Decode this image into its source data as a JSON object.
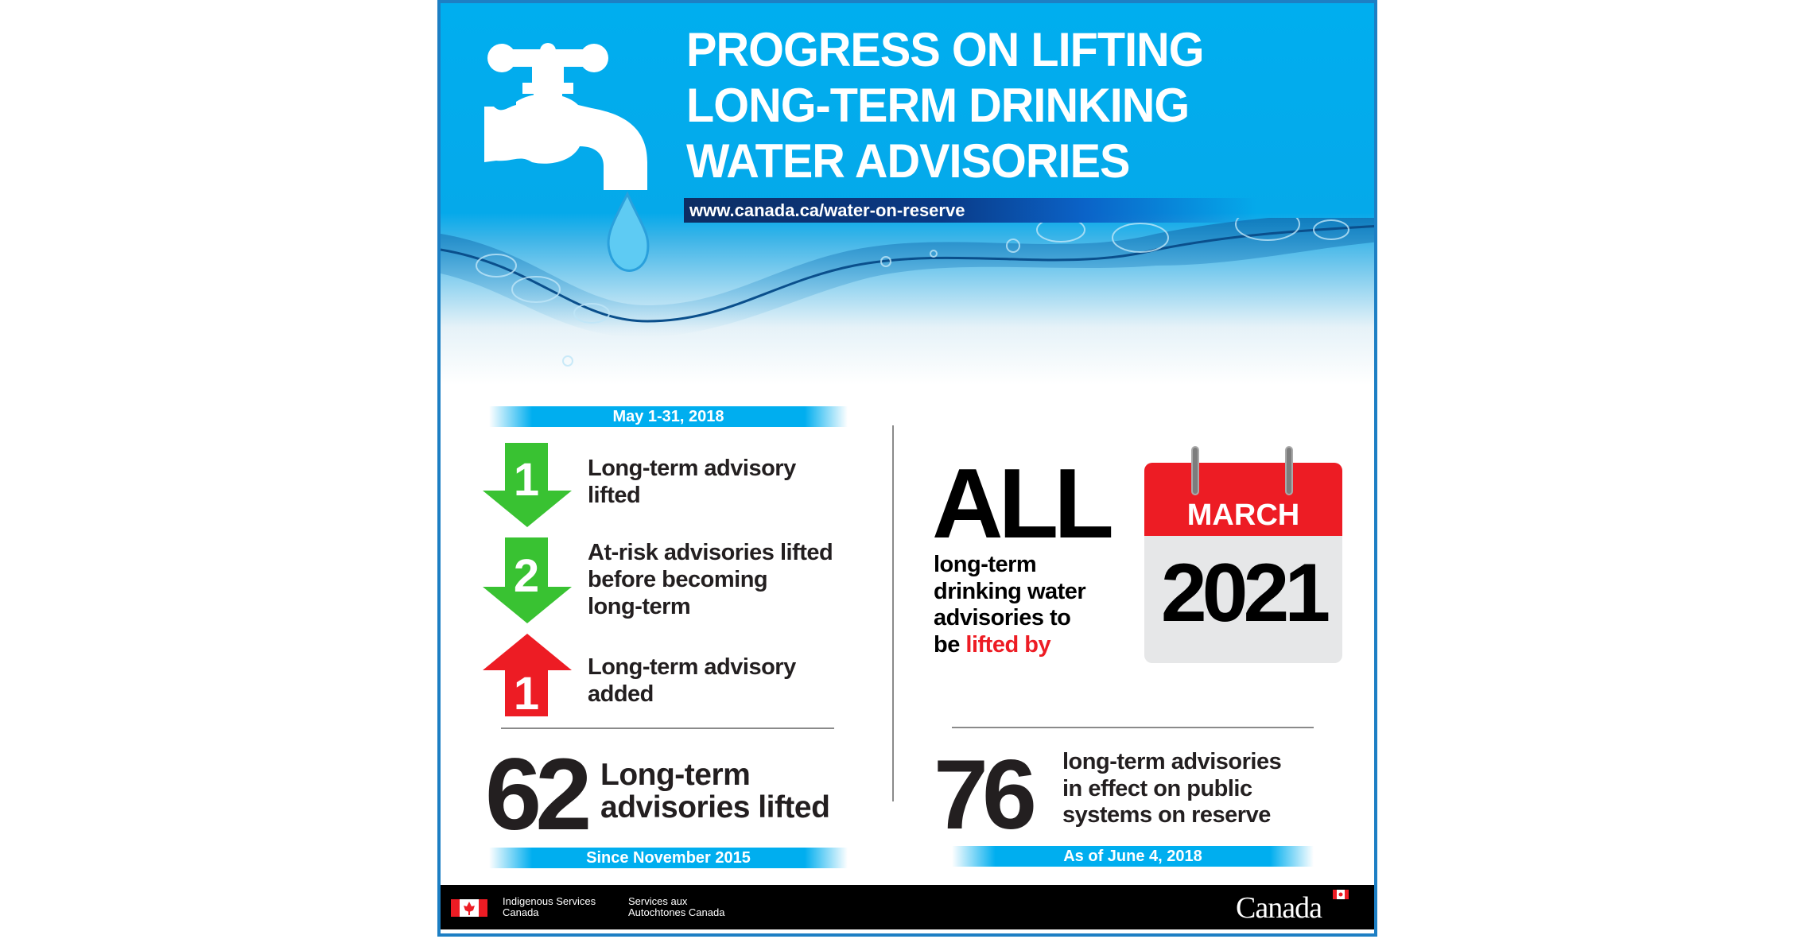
{
  "header": {
    "title_lines": [
      "PROGRESS ON LIFTING",
      "LONG-TERM DRINKING",
      "WATER ADVISORIES"
    ],
    "url": "www.canada.ca/water-on-reserve"
  },
  "left": {
    "period": "May 1-31, 2018",
    "items": [
      {
        "number": "1",
        "direction": "down",
        "color": "#39c232",
        "lines": [
          "Long-term advisory",
          "lifted"
        ]
      },
      {
        "number": "2",
        "direction": "down",
        "color": "#39c232",
        "lines": [
          "At-risk advisories lifted",
          "before becoming",
          "long-term"
        ]
      },
      {
        "number": "1",
        "direction": "up",
        "color": "#ed1c24",
        "lines": [
          "Long-term advisory",
          "added"
        ]
      }
    ],
    "total_number": "62",
    "total_lines": [
      "Long-term",
      "advisories lifted"
    ],
    "since": "Since November 2015"
  },
  "right": {
    "all": "ALL",
    "lines": [
      "long-term",
      "drinking water",
      "advisories to"
    ],
    "last_prefix": "be ",
    "last_highlight": "lifted by",
    "calendar": {
      "month": "MARCH",
      "year": "2021"
    },
    "count": "76",
    "count_lines": [
      "long-term advisories",
      "in effect on public",
      "systems on reserve"
    ],
    "as_of": "As of June 4, 2018"
  },
  "footer": {
    "dept_en": [
      "Indigenous Services",
      "Canada"
    ],
    "dept_fr": [
      "Services aux",
      "Autochtones Canada"
    ],
    "wordmark": "Canada"
  },
  "colors": {
    "header_blue": "#00aeef",
    "green": "#39c232",
    "red": "#ed1c24",
    "border": "#1d7fc4"
  }
}
